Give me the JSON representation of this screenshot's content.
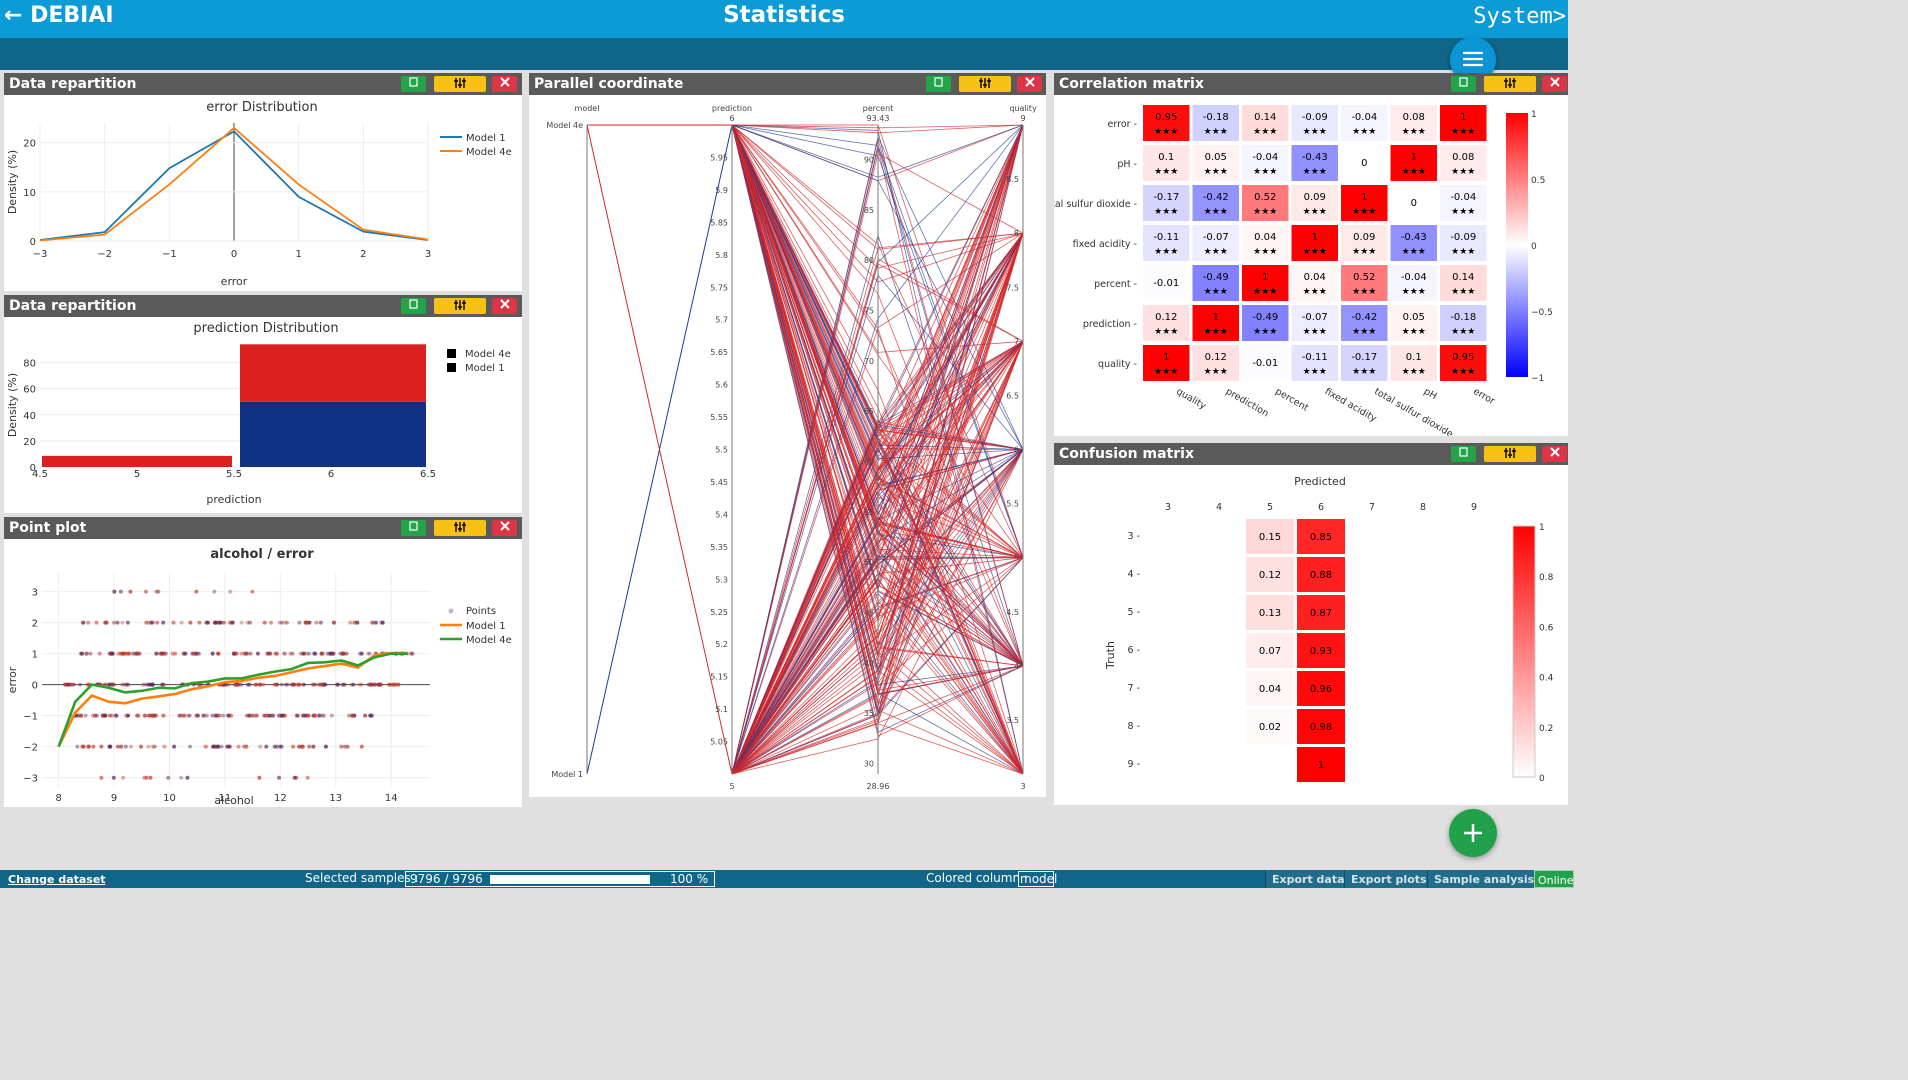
{
  "app": {
    "back_label": "← DEBIAI",
    "title": "Statistics",
    "user": "System>"
  },
  "panels": [
    {
      "title": "Data repartition"
    },
    {
      "title": "Data repartition"
    },
    {
      "title": "Point plot"
    },
    {
      "title": "Parallel coordinate"
    },
    {
      "title": "Correlation matrix"
    },
    {
      "title": "Confusion matrix"
    }
  ],
  "footer": {
    "change_dataset": "Change dataset",
    "selected_label": "Selected samples :",
    "selected_value": "9796 / 9796",
    "selected_fraction": 1.0,
    "selected_pct": "100 %",
    "colored_label": "Colored column :",
    "colored_value": "model",
    "export_data": "Export data",
    "export_plots": "Export plots",
    "sample_analysis": "Sample analysis",
    "status": "Online"
  },
  "colors": {
    "topbar": "#0d9bd8",
    "subbar": "#0f6689",
    "model1": "#1f77b4",
    "model4e": "#ff7f0e",
    "bar_blue": "#0f3284",
    "bar_red": "#db2020",
    "green": "#2ca02c"
  },
  "chart_data": [
    {
      "type": "line",
      "title": "error Distribution",
      "xlabel": "error",
      "ylabel": "Density (%)",
      "x": [
        -3,
        -2,
        -1,
        0,
        1,
        2,
        3
      ],
      "xlim": [
        -3,
        3
      ],
      "ylim": [
        0,
        24
      ],
      "yticks": [
        0,
        10,
        20
      ],
      "series": [
        {
          "name": "Model 1",
          "values": [
            0.2,
            1.8,
            14.8,
            22.3,
            9.0,
            1.9,
            0.2
          ]
        },
        {
          "name": "Model 4e",
          "values": [
            0.1,
            1.3,
            11.5,
            23.0,
            11.5,
            2.3,
            0.3
          ]
        }
      ],
      "legend": "top-right"
    },
    {
      "type": "bar",
      "title": "prediction Distribution",
      "xlabel": "prediction",
      "ylabel": "Density (%)",
      "xlim": [
        4.5,
        6.5
      ],
      "xticks": [
        4.5,
        5,
        5.5,
        6,
        6.5
      ],
      "ylim": [
        0,
        95
      ],
      "yticks": [
        0,
        20,
        40,
        60,
        80
      ],
      "bins": [
        {
          "x0": 4.5,
          "x1": 5.5,
          "stack": [
            {
              "name": "Model 1",
              "value": 0
            },
            {
              "name": "Model 4e",
              "value": 8.5
            }
          ]
        },
        {
          "x0": 5.5,
          "x1": 6.5,
          "stack": [
            {
              "name": "Model 1",
              "value": 50
            },
            {
              "name": "Model 4e",
              "value": 44
            }
          ]
        }
      ],
      "series_names": [
        "Model 4e",
        "Model 1"
      ],
      "legend": "top-right"
    },
    {
      "type": "scatter",
      "title": "alcohol / error",
      "xlabel": "alcohol",
      "ylabel": "error",
      "xlim": [
        7.7,
        14.7
      ],
      "ylim": [
        -3.3,
        3.6
      ],
      "xticks": [
        8,
        9,
        10,
        11,
        12,
        13,
        14
      ],
      "yticks": [
        -3,
        -2,
        -1,
        0,
        1,
        2,
        3
      ],
      "series": [
        {
          "name": "Points"
        },
        {
          "name": "Model 1",
          "x": [
            8,
            8.3,
            8.6,
            8.9,
            9.2,
            9.5,
            9.8,
            10.1,
            10.4,
            10.7,
            11,
            11.3,
            11.6,
            11.9,
            12.2,
            12.5,
            12.8,
            13.1,
            13.4,
            13.7,
            14,
            14.3
          ],
          "values": [
            -2,
            -0.9,
            -0.35,
            -0.55,
            -0.6,
            -0.45,
            -0.38,
            -0.3,
            -0.15,
            -0.05,
            0.08,
            0.12,
            0.22,
            0.28,
            0.4,
            0.52,
            0.6,
            0.68,
            0.55,
            0.95,
            1.02,
            1.02
          ]
        },
        {
          "name": "Model 4e",
          "x": [
            8,
            8.3,
            8.6,
            8.9,
            9.2,
            9.5,
            9.8,
            10.1,
            10.4,
            10.7,
            11,
            11.3,
            11.6,
            11.9,
            12.2,
            12.5,
            12.8,
            13.1,
            13.4,
            13.7,
            14,
            14.3
          ],
          "values": [
            -2,
            -0.55,
            0,
            -0.1,
            -0.25,
            -0.2,
            -0.1,
            -0.12,
            0.05,
            0.1,
            0.2,
            0.2,
            0.32,
            0.42,
            0.5,
            0.7,
            0.72,
            0.78,
            0.62,
            0.88,
            1.0,
            1.0
          ]
        }
      ],
      "legend": "top-right"
    },
    {
      "type": "parallel",
      "axes": [
        {
          "label": "model",
          "ticks": [
            "Model 1",
            "Model 4e"
          ]
        },
        {
          "label": "prediction",
          "range": [
            5,
            6
          ],
          "ticks": [
            "5",
            "5.05",
            "5.1",
            "5.15",
            "5.2",
            "5.25",
            "5.3",
            "5.35",
            "5.4",
            "5.45",
            "5.5",
            "5.55",
            "5.6",
            "5.65",
            "5.7",
            "5.75",
            "5.8",
            "5.85",
            "5.9",
            "5.95",
            "6"
          ]
        },
        {
          "label": "percent",
          "range": [
            28.96,
            93.43
          ],
          "ticks": [
            "28.96",
            "30",
            "35",
            "40",
            "45",
            "50",
            "55",
            "60",
            "65",
            "70",
            "75",
            "80",
            "85",
            "90",
            "93.43"
          ]
        },
        {
          "label": "quality",
          "range": [
            3,
            9
          ],
          "ticks": [
            "3",
            "3.5",
            "4",
            "4.5",
            "5",
            "5.5",
            "6",
            "6.5",
            "7",
            "7.5",
            "8",
            "8.5",
            "9"
          ]
        }
      ]
    },
    {
      "type": "heatmap",
      "rows": [
        "error",
        "pH",
        "total sulfur dioxide",
        "fixed acidity",
        "percent",
        "prediction",
        "quality"
      ],
      "cols": [
        "quality",
        "prediction",
        "percent",
        "fixed acidity",
        "total sulfur dioxide",
        "pH",
        "error"
      ],
      "values": [
        [
          0.95,
          -0.18,
          0.14,
          -0.09,
          -0.04,
          0.08,
          1
        ],
        [
          0.1,
          0.05,
          -0.04,
          -0.43,
          0,
          1,
          0.08
        ],
        [
          -0.17,
          -0.42,
          0.52,
          0.09,
          1,
          0,
          -0.04
        ],
        [
          -0.11,
          -0.07,
          0.04,
          1,
          0.09,
          -0.43,
          -0.09
        ],
        [
          -0.01,
          -0.49,
          1,
          0.04,
          0.52,
          -0.04,
          0.14
        ],
        [
          0.12,
          1,
          -0.49,
          -0.07,
          -0.42,
          0.05,
          -0.18
        ],
        [
          1,
          0.12,
          -0.01,
          -0.11,
          -0.17,
          0.1,
          0.95
        ]
      ],
      "stars": [
        [
          1,
          1,
          1,
          1,
          1,
          1,
          1
        ],
        [
          1,
          1,
          1,
          1,
          0,
          1,
          1
        ],
        [
          1,
          1,
          1,
          1,
          1,
          0,
          1
        ],
        [
          1,
          1,
          1,
          1,
          1,
          1,
          1
        ],
        [
          0,
          1,
          1,
          1,
          1,
          1,
          1
        ],
        [
          1,
          1,
          1,
          1,
          1,
          1,
          1
        ],
        [
          1,
          1,
          0,
          1,
          1,
          1,
          1
        ]
      ],
      "star_label": "★★★",
      "colorbar_ticks": [
        1,
        0.5,
        0,
        -0.5,
        -1
      ]
    },
    {
      "type": "heatmap",
      "title": "Predicted",
      "ylabel": "Truth",
      "cols": [
        "3",
        "4",
        "5",
        "6",
        "7",
        "8",
        "9"
      ],
      "rows": [
        "3",
        "4",
        "5",
        "6",
        "7",
        "8",
        "9"
      ],
      "cells": [
        {
          "r": 0,
          "c": 2,
          "v": 0.15
        },
        {
          "r": 0,
          "c": 3,
          "v": 0.85
        },
        {
          "r": 1,
          "c": 2,
          "v": 0.12
        },
        {
          "r": 1,
          "c": 3,
          "v": 0.88
        },
        {
          "r": 2,
          "c": 2,
          "v": 0.13
        },
        {
          "r": 2,
          "c": 3,
          "v": 0.87
        },
        {
          "r": 3,
          "c": 2,
          "v": 0.07
        },
        {
          "r": 3,
          "c": 3,
          "v": 0.93
        },
        {
          "r": 4,
          "c": 2,
          "v": 0.04
        },
        {
          "r": 4,
          "c": 3,
          "v": 0.96
        },
        {
          "r": 5,
          "c": 2,
          "v": 0.02
        },
        {
          "r": 5,
          "c": 3,
          "v": 0.98
        },
        {
          "r": 6,
          "c": 3,
          "v": 1
        }
      ],
      "colorbar_ticks": [
        1,
        0.8,
        0.6,
        0.4,
        0.2,
        0
      ]
    }
  ]
}
